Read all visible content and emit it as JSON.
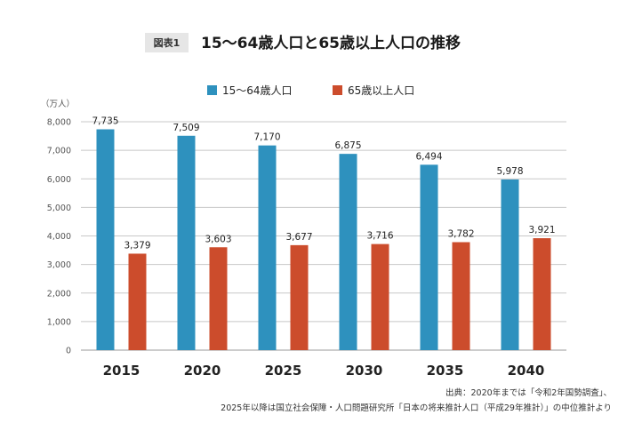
{
  "figure_label": "図表1",
  "title": "15〜64歳人口と65歳以上人口の推移",
  "source": {
    "line1": "出典：2020年までは「令和2年国勢調査」、",
    "line2": "2025年以降は国立社会保障・人口問題研究所「日本の将来推計人口（平成29年推計）」の中位推計より"
  },
  "chart_data": {
    "type": "bar",
    "title": "15〜64歳人口と65歳以上人口の推移",
    "ylabel": "（万人）",
    "xlabel": "",
    "categories": [
      "2015",
      "2020",
      "2025",
      "2030",
      "2035",
      "2040"
    ],
    "series": [
      {
        "name": "15〜64歳人口",
        "color": "#2e91be",
        "values": [
          7735,
          7509,
          7170,
          6875,
          6494,
          5978
        ],
        "labels": [
          "7,735",
          "7,509",
          "7,170",
          "6,875",
          "6,494",
          "5,978"
        ]
      },
      {
        "name": "65歳以上人口",
        "color": "#cc4c2c",
        "values": [
          3379,
          3603,
          3677,
          3716,
          3782,
          3921
        ],
        "labels": [
          "3,379",
          "3,603",
          "3,677",
          "3,716",
          "3,782",
          "3,921"
        ]
      }
    ],
    "ylim": [
      0,
      8000
    ],
    "yticks": [
      "0",
      "1,000",
      "2,000",
      "3,000",
      "4,000",
      "5,000",
      "6,000",
      "7,000",
      "8,000"
    ],
    "grid": true,
    "legend_position": "top-center"
  }
}
